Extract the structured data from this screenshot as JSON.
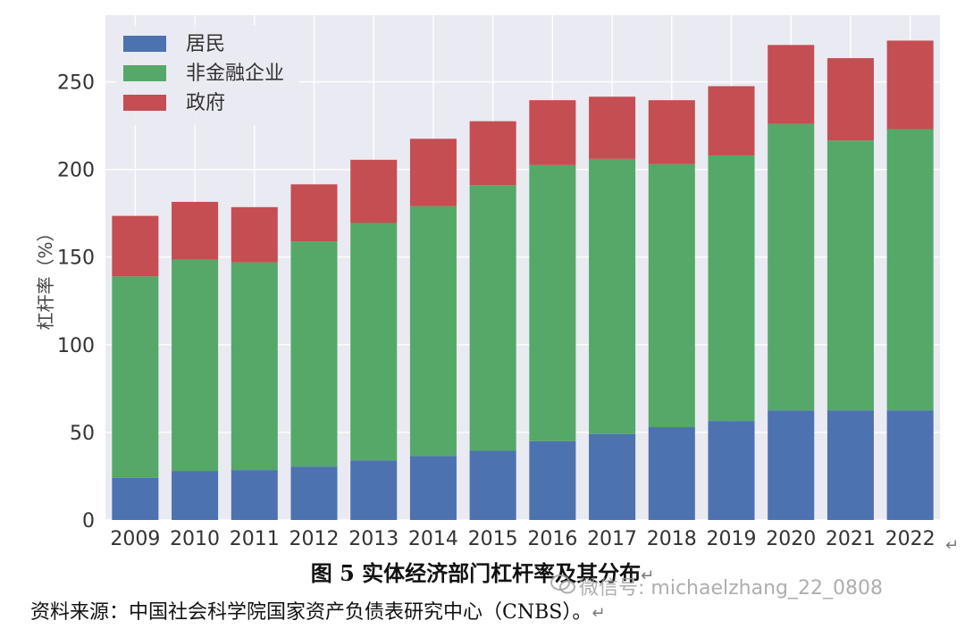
{
  "chart_data": {
    "type": "bar",
    "stacked": true,
    "categories": [
      "2009",
      "2010",
      "2011",
      "2012",
      "2013",
      "2014",
      "2015",
      "2016",
      "2017",
      "2018",
      "2019",
      "2020",
      "2021",
      "2022"
    ],
    "series": [
      {
        "name": "居民",
        "color": "#4c72b0",
        "values": [
          24,
          28,
          28.5,
          30.5,
          34,
          36.5,
          39.5,
          45,
          49,
          53,
          56.5,
          62.5,
          62.5,
          62.5
        ]
      },
      {
        "name": "非金融企业",
        "color": "#55a868",
        "values": [
          115,
          120.5,
          118.5,
          128.5,
          135.5,
          142.5,
          151.5,
          157.5,
          157,
          150,
          151.5,
          163.5,
          154,
          160.5
        ]
      },
      {
        "name": "政府",
        "color": "#c44e52",
        "values": [
          34.5,
          33,
          31.5,
          32.5,
          36,
          38.5,
          36.5,
          37,
          35.5,
          36.5,
          39.5,
          45,
          47,
          50.5
        ]
      }
    ],
    "ylabel": "杠杆率（%）",
    "ylim": [
      0,
      288
    ],
    "yticks": [
      0,
      50,
      100,
      150,
      200,
      250
    ],
    "grid": true,
    "legend": "top-left",
    "background": "#eaeaf2"
  },
  "caption": "图 5  实体经济部门杠杆率及其分布",
  "source": "资料来源：中国社会科学院国家资产负债表研究中心（CNBS）。",
  "watermark": "微信号: michaelzhang_22_0808",
  "return_mark": "↵"
}
